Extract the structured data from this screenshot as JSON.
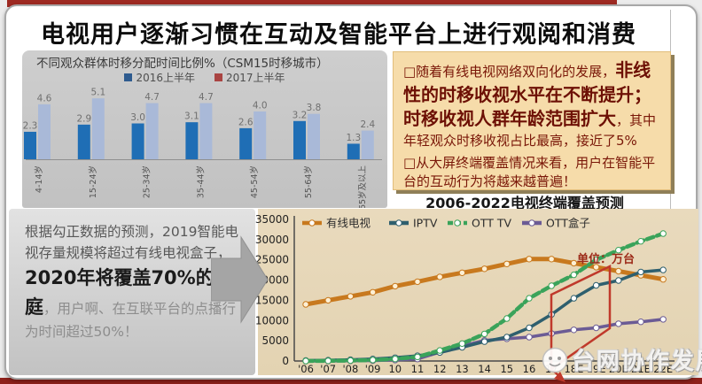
{
  "slide": {
    "title": "电视用户逐渐习惯在互动及智能平台上进行观阅和消费"
  },
  "insight": {
    "p1_normal1": "□随着有线电视网络双向化的发展，",
    "p1_big": "非线性的时移收视水平在不断提升；时移收视人群年龄范围扩大",
    "p1_normal2": "，其中年轻观众时移收视占比最高，接近了5%",
    "p2": "□从大屏终端覆盖情况来看，用户在智能平台的互动行为将越来越普遍！"
  },
  "prediction": {
    "part1": "根据勾正数据的预测，2019智能电视存量规模将超过有线电视盒子，",
    "part2": "2020年将覆盖70%的家庭",
    "part3": "，用户啊、在互联平台的点播行为时间超过50%！"
  },
  "watermark": {
    "text": "台网协作发展"
  },
  "colors": {
    "accent_red": "#9e2a22",
    "note_bg": "#f6dcaa",
    "note_text": "#7a1708",
    "panel_gray": "#c7c7c7",
    "chart_bg": "#e7d8ba",
    "annotation_red": "#c0392b"
  },
  "chart_data": [
    {
      "type": "bar",
      "title": "不同观众群体时移分配时间比例%（CSM15时移城市）",
      "categories": [
        "4-14岁",
        "15-24岁",
        "25-34岁",
        "35-44岁",
        "45-54岁",
        "55-64岁",
        "65岁及以上"
      ],
      "series": [
        {
          "name": "2016上半年",
          "color": "#1f6eb5",
          "legend_color": "#2e5b8f",
          "values": [
            2.3,
            2.9,
            3.0,
            3.1,
            2.6,
            3.2,
            1.3
          ]
        },
        {
          "name": "2017上半年",
          "color": "#a9b9d8",
          "legend_color": "#a94442",
          "values": [
            4.6,
            5.1,
            4.7,
            4.7,
            4.0,
            3.8,
            2.4
          ]
        }
      ],
      "ylabel": "",
      "xlabel": "",
      "ylim": [
        0,
        5.5
      ],
      "grid": false,
      "legend_position": "top"
    },
    {
      "type": "line",
      "title": "2006-2022电视终端覆盖预测",
      "unit_note": "单位：万台",
      "x": [
        "'06",
        "'07",
        "'08",
        "'09",
        "10",
        "11",
        "12",
        "13",
        "14",
        "15",
        "16",
        "17",
        "18E",
        "19E",
        "20E",
        "21E",
        "22E"
      ],
      "series": [
        {
          "name": "有线电视",
          "color": "#c8791e",
          "dash": false,
          "width": 5,
          "values": [
            14000,
            15000,
            16000,
            17000,
            18500,
            19600,
            20800,
            21800,
            22800,
            24000,
            25200,
            25200,
            24200,
            23200,
            22200,
            21200,
            20200
          ]
        },
        {
          "name": "OTT盒子",
          "color": "#6b5b95",
          "dash": false,
          "width": 3.5,
          "values": [
            0,
            0,
            50,
            100,
            250,
            500,
            2200,
            3700,
            5100,
            5500,
            5900,
            6800,
            7700,
            8200,
            9200,
            9700,
            10300
          ]
        },
        {
          "name": "IPTV",
          "color": "#2e5f6e",
          "dash": false,
          "width": 3.5,
          "values": [
            100,
            200,
            300,
            500,
            800,
            1300,
            2100,
            3400,
            4800,
            5900,
            8200,
            11500,
            15500,
            18700,
            19900,
            22000,
            22500
          ]
        },
        {
          "name": "OTT TV",
          "color": "#3aa35a",
          "dash": true,
          "width": 4.5,
          "values": [
            0,
            50,
            100,
            250,
            500,
            1000,
            2600,
            4300,
            6700,
            10500,
            15500,
            18600,
            21300,
            25000,
            27400,
            29600,
            31500
          ]
        }
      ],
      "legend_order": [
        "有线电视",
        "IPTV",
        "OTT TV",
        "OTT盒子"
      ],
      "ylim": [
        0,
        35000
      ],
      "yticks": [
        0,
        5000,
        10000,
        15000,
        20000,
        25000,
        30000,
        35000
      ],
      "grid": false,
      "legend_position": "top",
      "annotation": {
        "highlight_years": "17–20E",
        "note": "单位：万台"
      }
    }
  ]
}
